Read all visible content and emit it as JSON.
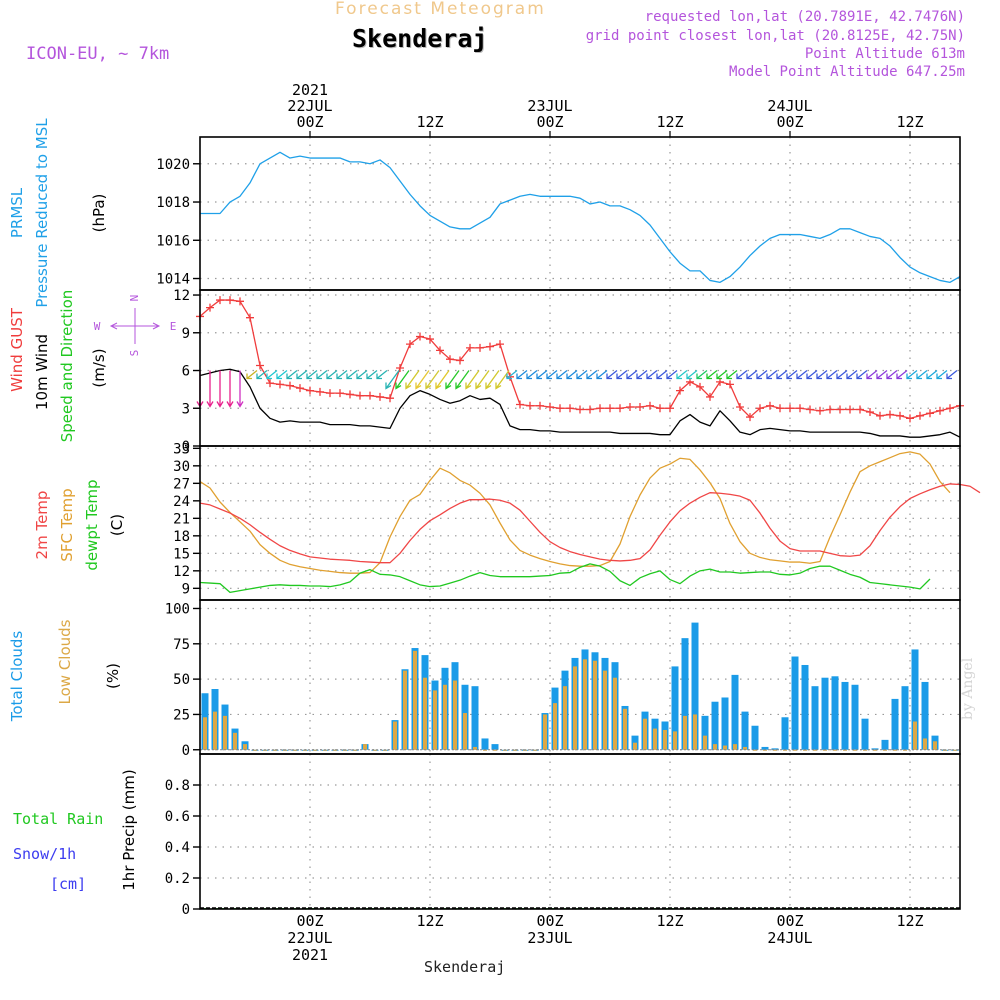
{
  "header": {
    "product": "Forecast Meteogram",
    "location": "Skenderaj",
    "model": "ICON-EU, ~ 7km",
    "requested": "requested lon,lat (20.7891E, 42.7476N)",
    "gridpoint": "grid point closest lon,lat (20.8125E, 42.75N)",
    "point_altitude": "Point Altitude 613m",
    "model_altitude": "Model Point Altitude 647.25m",
    "footer_location": "Skenderaj",
    "watermark": "by Angel"
  },
  "colors": {
    "pressure": "#1fa0e8",
    "gust": "#f03c3c",
    "wind": "#000000",
    "temp2m": "#f04646",
    "sfc": "#e0a030",
    "dew": "#20c820",
    "total_clouds": "#1a9be8",
    "low_clouds": "#dca846",
    "rain": "#20c820",
    "snow": "#3c3cf0",
    "meta": "#b455dc",
    "product": "#f0c88c"
  },
  "time_axis": {
    "top_ticks": [
      {
        "t": 0,
        "lines": [
          "2021",
          "22JUL",
          "00Z"
        ]
      },
      {
        "t": 12,
        "lines": [
          "12Z"
        ]
      },
      {
        "t": 24,
        "lines": [
          "23JUL",
          "00Z"
        ]
      },
      {
        "t": 36,
        "lines": [
          "12Z"
        ]
      },
      {
        "t": 48,
        "lines": [
          "24JUL",
          "00Z"
        ]
      },
      {
        "t": 60,
        "lines": [
          "12Z"
        ]
      }
    ],
    "bottom_ticks": [
      {
        "t": 0,
        "lines": [
          "00Z",
          "22JUL",
          "2021"
        ]
      },
      {
        "t": 12,
        "lines": [
          "12Z"
        ]
      },
      {
        "t": 24,
        "lines": [
          "00Z",
          "23JUL"
        ]
      },
      {
        "t": 36,
        "lines": [
          "12Z"
        ]
      },
      {
        "t": 48,
        "lines": [
          "00Z",
          "24JUL"
        ]
      },
      {
        "t": 60,
        "lines": [
          "12Z"
        ]
      }
    ]
  },
  "chart_data": [
    {
      "type": "line",
      "panel": "pressure",
      "title_lines": [
        "PRMSL",
        "Pressure Reduced to MSL"
      ],
      "unit": "(hPa)",
      "x_start_hours": -11,
      "x_end_hours": 65,
      "ylim": [
        1013.4,
        1021.4
      ],
      "yticks": [
        1014,
        1016,
        1018,
        1020
      ],
      "series": [
        {
          "values": [
            1017.4,
            1017.4,
            1017.4,
            1018.0,
            1018.3,
            1019.0,
            1020.0,
            1020.3,
            1020.6,
            1020.3,
            1020.4,
            1020.3,
            1020.3,
            1020.3,
            1020.3,
            1020.1,
            1020.1,
            1020.0,
            1020.2,
            1019.8,
            1019.1,
            1018.4,
            1017.8,
            1017.3,
            1017.0,
            1016.7,
            1016.6,
            1016.6,
            1016.9,
            1017.2,
            1017.9,
            1018.1,
            1018.3,
            1018.4,
            1018.3,
            1018.3,
            1018.3,
            1018.3,
            1018.2,
            1017.9,
            1018.0,
            1017.8,
            1017.8,
            1017.6,
            1017.3,
            1016.8,
            1016.1,
            1015.4,
            1014.8,
            1014.4,
            1014.4,
            1013.9,
            1013.8,
            1014.1,
            1014.6,
            1015.2,
            1015.7,
            1016.1,
            1016.3,
            1016.3,
            1016.3,
            1016.2,
            1016.1,
            1016.3,
            1016.6,
            1016.6,
            1016.4,
            1016.2,
            1016.1,
            1015.7,
            1015.1,
            1014.6,
            1014.3,
            1014.1,
            1013.9,
            1013.8,
            1014.1
          ]
        }
      ]
    },
    {
      "type": "line",
      "panel": "wind",
      "title_lines": [
        "Wind GUST",
        "10m Wind",
        "Speed and Direction"
      ],
      "unit": "(m/s)",
      "compass": [
        "N",
        "S",
        "W",
        "E"
      ],
      "x_start_hours": -11,
      "x_end_hours": 65,
      "ylim": [
        0,
        12.4
      ],
      "yticks": [
        0,
        3,
        6,
        9,
        12
      ],
      "series": [
        {
          "name": "Wind GUST",
          "values": [
            10.3,
            11.0,
            11.6,
            11.6,
            11.5,
            10.2,
            6.4,
            5.0,
            4.9,
            4.8,
            4.6,
            4.4,
            4.3,
            4.2,
            4.2,
            4.1,
            4.0,
            4.0,
            3.9,
            3.8,
            6.2,
            8.1,
            8.7,
            8.5,
            7.6,
            6.9,
            6.8,
            7.8,
            7.8,
            7.9,
            8.1,
            5.5,
            3.3,
            3.2,
            3.2,
            3.1,
            3.0,
            3.0,
            2.9,
            2.9,
            3.0,
            3.0,
            3.0,
            3.1,
            3.1,
            3.2,
            3.0,
            3.0,
            4.4,
            5.1,
            4.7,
            3.9,
            5.1,
            4.9,
            3.1,
            2.3,
            3.0,
            3.2,
            3.0,
            3.0,
            3.0,
            2.9,
            2.8,
            2.9,
            2.9,
            2.9,
            2.9,
            2.7,
            2.4,
            2.5,
            2.4,
            2.2,
            2.4,
            2.6,
            2.8,
            3.0,
            3.2
          ]
        },
        {
          "name": "10m Wind",
          "values": [
            5.6,
            5.8,
            6.0,
            6.1,
            5.9,
            4.7,
            3.0,
            2.2,
            1.9,
            2.0,
            1.9,
            1.9,
            1.9,
            1.7,
            1.7,
            1.7,
            1.6,
            1.6,
            1.5,
            1.4,
            3.0,
            4.0,
            4.4,
            4.1,
            3.7,
            3.4,
            3.6,
            4.0,
            3.7,
            3.8,
            3.3,
            1.6,
            1.3,
            1.3,
            1.2,
            1.2,
            1.1,
            1.1,
            1.1,
            1.1,
            1.1,
            1.1,
            1.0,
            1.0,
            1.0,
            1.0,
            0.9,
            0.9,
            2.0,
            2.5,
            1.9,
            1.6,
            2.8,
            2.0,
            1.1,
            0.9,
            1.3,
            1.4,
            1.3,
            1.2,
            1.2,
            1.1,
            1.1,
            1.1,
            1.1,
            1.1,
            1.1,
            1.0,
            0.8,
            0.8,
            0.8,
            0.7,
            0.7,
            0.8,
            0.9,
            1.1,
            0.7
          ]
        }
      ],
      "arrow_colors_by_hour": [
        "#e8208c",
        "#e8208c",
        "#e8208c",
        "#e8208c",
        "#d030c0",
        "#c8b428",
        "#28b4b4",
        "#20c8d2",
        "#20c8d2",
        "#28b4b4",
        "#28b4b4",
        "#28b4b4",
        "#28b4b4",
        "#28b4b4",
        "#28b4b4",
        "#28b4b4",
        "#28b4b4",
        "#28b4b4",
        "#28b4b4",
        "#28b4b4",
        "#20c828",
        "#d2c82a",
        "#e6c832",
        "#d2c832",
        "#e0c828",
        "#28c828",
        "#28c828",
        "#d2c82a",
        "#d2c82a",
        "#d2c82a",
        "#d2c82a",
        "#28b4d2",
        "#1e8cdc",
        "#1e8cdc",
        "#1e8cdc",
        "#1e8cdc",
        "#1e8cdc",
        "#1e8cdc",
        "#1e8cdc",
        "#1e8cdc",
        "#1e8cdc",
        "#3c5adc",
        "#3c5adc",
        "#3c5adc",
        "#3c5adc",
        "#3c5adc",
        "#3c5adc",
        "#3c5adc",
        "#28c8c8",
        "#28c8c8",
        "#20c864",
        "#20c828",
        "#20c828",
        "#20c828",
        "#3c5adc",
        "#3c5adc",
        "#3c5adc",
        "#3c5adc",
        "#3c5adc",
        "#3c5adc",
        "#3c5adc",
        "#3c5adc",
        "#3c5adc",
        "#3c5adc",
        "#3c5adc",
        "#3c5adc",
        "#3c5adc",
        "#8c3cdc",
        "#8c3cdc",
        "#8c3cdc",
        "#8c3cdc",
        "#1eaadc",
        "#1eaadc",
        "#1eaadc",
        "#1eaadc",
        "#3c5adc"
      ]
    },
    {
      "type": "line",
      "panel": "temperature",
      "title_lines": [
        "2m Temp",
        "SFC Temp",
        "dewpt Temp"
      ],
      "unit": "(C)",
      "x_start_hours": -11,
      "x_end_hours": 65,
      "ylim": [
        7,
        33.4
      ],
      "yticks": [
        9,
        12,
        15,
        18,
        21,
        24,
        27,
        30,
        33
      ],
      "series": [
        {
          "name": "2m Temp",
          "values": [
            23.6,
            23.3,
            22.6,
            21.9,
            21.0,
            19.9,
            18.6,
            17.4,
            16.3,
            15.5,
            14.9,
            14.4,
            14.2,
            14.0,
            13.9,
            13.8,
            13.6,
            13.5,
            13.4,
            13.4,
            15.0,
            17.2,
            19.1,
            20.6,
            21.6,
            22.7,
            23.6,
            24.2,
            24.2,
            24.3,
            24.1,
            23.6,
            22.4,
            20.5,
            18.6,
            17.0,
            16.0,
            15.3,
            14.8,
            14.4,
            14.0,
            13.8,
            13.7,
            13.8,
            14.1,
            15.6,
            18.1,
            20.4,
            22.3,
            23.6,
            24.6,
            25.4,
            25.3,
            25.1,
            24.8,
            24.1,
            21.9,
            19.3,
            17.1,
            15.8,
            15.4,
            15.4,
            15.4,
            15.0,
            14.6,
            14.5,
            14.7,
            16.3,
            18.9,
            21.2,
            23.0,
            24.4,
            25.2,
            25.9,
            26.5,
            26.9,
            26.8,
            26.5,
            25.4
          ]
        },
        {
          "name": "SFC Temp",
          "values": [
            27.3,
            26.2,
            23.8,
            22.0,
            20.4,
            18.8,
            16.5,
            15.0,
            13.8,
            13.1,
            12.7,
            12.4,
            12.1,
            11.9,
            11.7,
            11.6,
            11.6,
            11.7,
            13.4,
            17.8,
            21.3,
            24.1,
            25.1,
            27.5,
            29.6,
            28.8,
            27.5,
            26.7,
            25.3,
            23.3,
            20.2,
            17.3,
            15.5,
            14.7,
            14.1,
            13.6,
            13.2,
            12.9,
            12.8,
            12.8,
            12.9,
            13.6,
            16.6,
            21.3,
            25.0,
            27.9,
            29.6,
            30.3,
            31.3,
            31.1,
            29.3,
            27.1,
            24.4,
            20.1,
            17.0,
            15.0,
            14.3,
            13.9,
            13.7,
            13.5,
            13.5,
            13.3,
            13.6,
            17.8,
            21.6,
            25.5,
            29.0,
            30.0,
            30.7,
            31.4,
            32.1,
            32.4,
            32.0,
            30.3,
            27.3,
            25.4
          ]
        },
        {
          "name": "dewpt Temp",
          "values": [
            10.0,
            9.9,
            9.8,
            8.3,
            8.6,
            8.9,
            9.2,
            9.5,
            9.6,
            9.5,
            9.5,
            9.4,
            9.4,
            9.3,
            9.6,
            10.1,
            11.6,
            12.2,
            11.4,
            11.3,
            11.0,
            10.3,
            9.6,
            9.3,
            9.4,
            9.9,
            10.4,
            11.1,
            11.7,
            11.2,
            11.0,
            11.0,
            11.0,
            11.0,
            11.1,
            11.2,
            11.6,
            11.7,
            12.6,
            13.2,
            12.8,
            11.9,
            10.3,
            9.5,
            10.8,
            11.5,
            12.0,
            10.5,
            9.8,
            11.1,
            12.0,
            12.3,
            11.8,
            11.8,
            11.6,
            11.7,
            11.8,
            11.8,
            11.4,
            11.3,
            11.6,
            12.4,
            12.8,
            12.8,
            12.1,
            11.4,
            10.9,
            10.0,
            9.8,
            9.6,
            9.4,
            9.2,
            8.9,
            10.6
          ]
        }
      ]
    },
    {
      "type": "bar",
      "panel": "clouds",
      "title_lines": [
        "Total Clouds",
        "Low Clouds"
      ],
      "unit": "(%)",
      "x_start_hours": -11,
      "x_end_hours": 65,
      "ylim": [
        -3,
        106
      ],
      "yticks": [
        0,
        25,
        50,
        75,
        100
      ],
      "series": [
        {
          "name": "Total Clouds",
          "values": [
            40,
            43,
            32,
            15,
            6,
            0,
            0,
            0,
            0,
            0,
            0,
            0,
            0,
            0,
            0,
            0,
            4,
            0,
            0,
            21,
            57,
            72,
            67,
            49,
            58,
            62,
            46,
            45,
            8,
            4,
            0,
            0,
            0,
            0,
            26,
            44,
            56,
            65,
            71,
            69,
            65,
            62,
            31,
            10,
            27,
            22,
            20,
            59,
            79,
            90,
            24,
            34,
            37,
            53,
            27,
            17,
            2,
            1,
            23,
            66,
            60,
            45,
            51,
            52,
            48,
            46,
            22,
            1,
            7,
            36,
            45,
            71,
            48,
            10,
            0,
            0
          ]
        },
        {
          "name": "Low Clouds",
          "values": [
            23,
            27,
            24,
            12,
            4,
            0,
            0,
            0,
            0,
            0,
            0,
            0,
            0,
            0,
            0,
            0,
            4,
            0,
            0,
            20,
            56,
            70,
            51,
            42,
            46,
            49,
            26,
            2,
            0,
            0,
            0,
            0,
            0,
            0,
            25,
            33,
            45,
            59,
            64,
            63,
            56,
            51,
            29,
            5,
            22,
            15,
            14,
            13,
            24,
            25,
            10,
            4,
            3,
            4,
            2,
            0,
            0,
            0,
            0,
            0,
            0,
            0,
            0,
            0,
            0,
            0,
            0,
            0,
            0,
            0,
            0,
            20,
            8,
            6,
            0,
            0
          ]
        }
      ]
    },
    {
      "type": "bar",
      "panel": "precipitation",
      "title_lines": [
        "Total Rain",
        "Snow/1h",
        "[cm]"
      ],
      "unit": "1hr Precip (mm)",
      "x_start_hours": -11,
      "x_end_hours": 65,
      "ylim": [
        0,
        1.0
      ],
      "yticks": [
        "0",
        "0.2",
        "0.4",
        "0.6",
        "0.8"
      ],
      "series": [
        {
          "name": "Total Rain",
          "values": [
            0,
            0,
            0,
            0,
            0,
            0,
            0,
            0,
            0,
            0,
            0,
            0,
            0,
            0,
            0,
            0,
            0,
            0,
            0,
            0,
            0,
            0,
            0,
            0,
            0,
            0,
            0,
            0,
            0,
            0,
            0,
            0,
            0,
            0,
            0,
            0,
            0,
            0,
            0,
            0,
            0,
            0,
            0,
            0,
            0,
            0,
            0,
            0,
            0,
            0,
            0,
            0,
            0,
            0,
            0,
            0,
            0,
            0,
            0,
            0,
            0,
            0,
            0,
            0,
            0,
            0,
            0,
            0,
            0,
            0,
            0,
            0,
            0,
            0,
            0,
            0
          ]
        }
      ]
    }
  ]
}
